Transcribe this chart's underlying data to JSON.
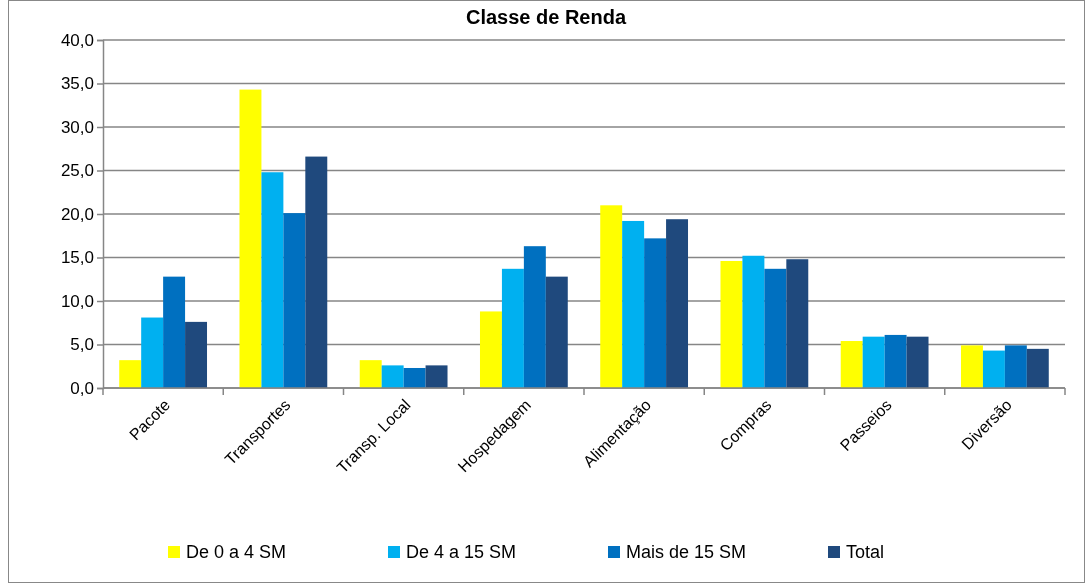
{
  "chart_data": {
    "type": "bar",
    "title": "Classe de Renda",
    "categories": [
      "Pacote",
      "Transportes",
      "Transp. Local",
      "Hospedagem",
      "Alimentação",
      "Compras",
      "Passeios",
      "Diversão"
    ],
    "series": [
      {
        "name": "De 0 a 4 SM",
        "color": "#ffff00",
        "values": [
          3.2,
          34.3,
          3.2,
          8.8,
          21.0,
          14.6,
          5.4,
          4.9
        ]
      },
      {
        "name": "De 4 a 15 SM",
        "color": "#00b0f0",
        "values": [
          8.1,
          24.8,
          2.6,
          13.7,
          19.2,
          15.2,
          5.9,
          4.3
        ]
      },
      {
        "name": "Mais de 15 SM",
        "color": "#0070c0",
        "values": [
          12.8,
          20.1,
          2.3,
          16.3,
          17.2,
          13.7,
          6.1,
          4.9
        ]
      },
      {
        "name": "Total",
        "color": "#1f497d",
        "values": [
          7.6,
          26.6,
          2.6,
          12.8,
          19.4,
          14.8,
          5.9,
          4.5
        ]
      }
    ],
    "ylim": [
      0,
      40
    ],
    "yticks": [
      {
        "value": 0,
        "label": "0,0"
      },
      {
        "value": 5,
        "label": "5,0"
      },
      {
        "value": 10,
        "label": "10,0"
      },
      {
        "value": 15,
        "label": "15,0"
      },
      {
        "value": 20,
        "label": "20,0"
      },
      {
        "value": 25,
        "label": "25,0"
      },
      {
        "value": 30,
        "label": "30,0"
      },
      {
        "value": 35,
        "label": "35,0"
      },
      {
        "value": 40,
        "label": "40,0"
      }
    ],
    "grid": "y",
    "legend": "bottom"
  }
}
